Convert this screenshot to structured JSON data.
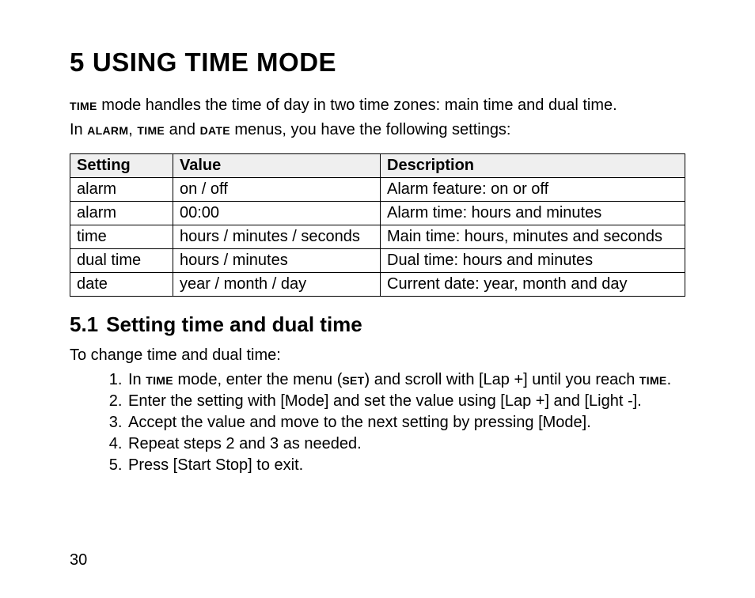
{
  "chapter": {
    "num": "5",
    "title": "USING TIME MODE"
  },
  "intro": {
    "p1_pre": "",
    "p1_bold1": "time",
    "p1_post": " mode handles the time of day in two time zones: main time and dual time.",
    "p2_pre": "In ",
    "p2_b1": "alarm",
    "p2_mid1": ", ",
    "p2_b2": "time",
    "p2_mid2": " and ",
    "p2_b3": "date",
    "p2_post": " menus, you have the following settings:"
  },
  "table": {
    "headers": [
      "Setting",
      "Value",
      "Description"
    ],
    "rows": [
      [
        "alarm",
        "on / off",
        "Alarm feature: on or off"
      ],
      [
        "alarm",
        "00:00",
        "Alarm time: hours and minutes"
      ],
      [
        "time",
        "hours / minutes / seconds",
        "Main time: hours, minutes and seconds"
      ],
      [
        "dual time",
        "hours / minutes",
        "Dual time: hours and minutes"
      ],
      [
        "date",
        "year / month / day",
        "Current date: year, month and day"
      ]
    ]
  },
  "section": {
    "num": "5.1",
    "title": "Setting time and dual time"
  },
  "steps_lead": "To change time and dual time:",
  "steps": {
    "s1_pre": "In ",
    "s1_b1": "time",
    "s1_mid": " mode, enter the menu (",
    "s1_b2": "set",
    "s1_mid2": ") and scroll with [Lap +] until you reach ",
    "s1_b3": "time",
    "s1_post": ".",
    "s2": "Enter the setting with [Mode] and set the value using [Lap +] and [Light -].",
    "s3": "Accept the value and move to the next setting by pressing [Mode].",
    "s4": "Repeat steps 2 and 3 as needed.",
    "s5": "Press [Start Stop] to exit."
  },
  "page_number": "30"
}
